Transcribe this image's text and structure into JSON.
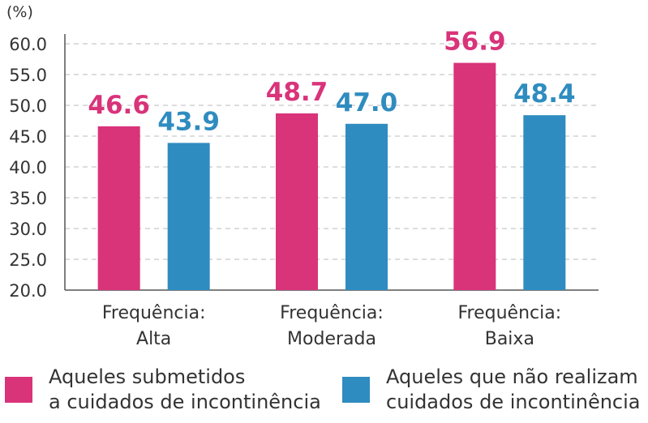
{
  "chart_data": {
    "type": "bar",
    "unit_label": "(%)",
    "ylim": [
      20.0,
      60.0
    ],
    "yticks": [
      "20.0",
      "25.0",
      "30.0",
      "35.0",
      "40.0",
      "45.0",
      "50.0",
      "55.0",
      "60.0"
    ],
    "grid": true,
    "categories": [
      [
        "Frequência:",
        "Alta"
      ],
      [
        "Frequência:",
        "Moderada"
      ],
      [
        "Frequência:",
        "Baixa"
      ]
    ],
    "series": [
      {
        "name_lines": [
          "Aqueles submetidos",
          "a cuidados de incontinência"
        ],
        "color": "#d9337a",
        "values": [
          46.6,
          48.7,
          56.9
        ],
        "labels": [
          "46.6",
          "48.7",
          "56.9"
        ]
      },
      {
        "name_lines": [
          "Aqueles que não realizam",
          "cuidados de incontinência"
        ],
        "color": "#2f8cc0",
        "values": [
          43.9,
          47.0,
          48.4
        ],
        "labels": [
          "43.9",
          "47.0",
          "48.4"
        ]
      }
    ],
    "legend_position": "bottom"
  }
}
